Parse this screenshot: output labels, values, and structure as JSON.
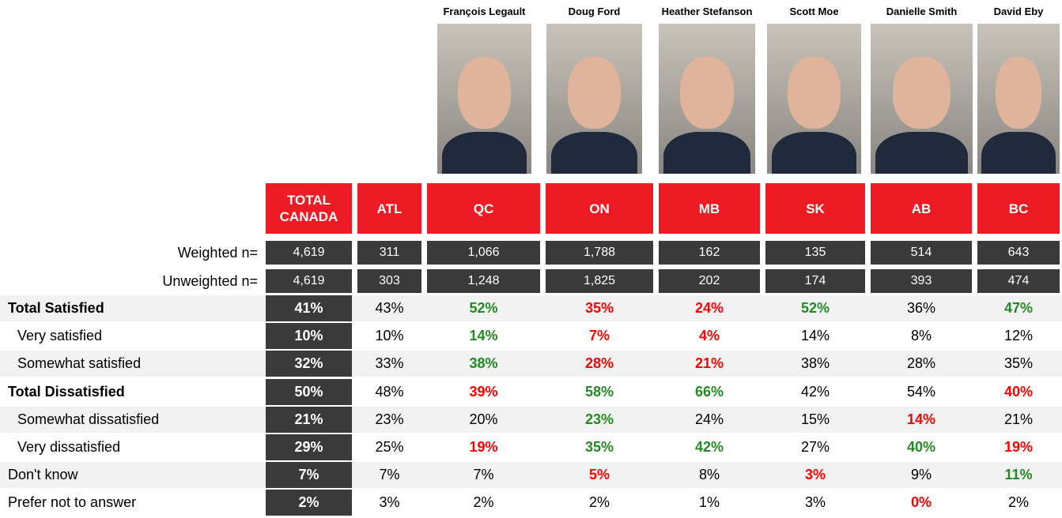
{
  "leaders": [
    "François Legault",
    "Doug Ford",
    "Heather Stefanson",
    "Scott Moe",
    "Danielle Smith",
    "David Eby"
  ],
  "table": {
    "headers": [
      "TOTAL CANADA",
      "ATL",
      "QC",
      "ON",
      "MB",
      "SK",
      "AB",
      "BC"
    ],
    "sample_rows": [
      {
        "label": "Weighted n=",
        "cells": [
          "4,619",
          "311",
          "1,066",
          "1,788",
          "162",
          "135",
          "514",
          "643"
        ]
      },
      {
        "label": "Unweighted n=",
        "cells": [
          "4,619",
          "303",
          "1,248",
          "1,825",
          "202",
          "174",
          "393",
          "474"
        ]
      }
    ],
    "rows": [
      {
        "label": "Total Satisfied",
        "cells": [
          "41%",
          "43%",
          "52%",
          "35%",
          "24%",
          "52%",
          "36%",
          "47%"
        ],
        "colors": [
          null,
          null,
          "#228b22",
          "#ff0000",
          "#ff0000",
          "#228b22",
          null,
          "#228b22"
        ]
      },
      {
        "label": "Very satisfied",
        "cells": [
          "10%",
          "10%",
          "14%",
          "7%",
          "4%",
          "14%",
          "8%",
          "12%"
        ],
        "colors": [
          null,
          null,
          "#228b22",
          "#ff0000",
          "#ff0000",
          null,
          null,
          null
        ]
      },
      {
        "label": "Somewhat satisfied",
        "cells": [
          "32%",
          "33%",
          "38%",
          "28%",
          "21%",
          "38%",
          "28%",
          "35%"
        ],
        "colors": [
          null,
          null,
          "#228b22",
          "#ff0000",
          "#ff0000",
          null,
          null,
          null
        ]
      },
      {
        "label": "Total Dissatisfied",
        "cells": [
          "50%",
          "48%",
          "39%",
          "58%",
          "66%",
          "42%",
          "54%",
          "40%"
        ],
        "colors": [
          null,
          null,
          "#ff0000",
          "#228b22",
          "#228b22",
          null,
          null,
          "#ff0000"
        ]
      },
      {
        "label": "Somewhat dissatisfied",
        "cells": [
          "21%",
          "23%",
          "20%",
          "23%",
          "24%",
          "15%",
          "14%",
          "21%"
        ],
        "colors": [
          null,
          null,
          null,
          "#228b22",
          null,
          null,
          "#ff0000",
          null
        ]
      },
      {
        "label": "Very dissatisfied",
        "cells": [
          "29%",
          "25%",
          "19%",
          "35%",
          "42%",
          "27%",
          "40%",
          "19%"
        ],
        "colors": [
          null,
          null,
          "#ff0000",
          "#228b22",
          "#228b22",
          null,
          "#228b22",
          "#ff0000"
        ]
      },
      {
        "label": "Don't know",
        "cells": [
          "7%",
          "7%",
          "7%",
          "5%",
          "8%",
          "3%",
          "9%",
          "11%"
        ],
        "colors": [
          null,
          null,
          null,
          "#ff0000",
          null,
          "#ff0000",
          null,
          "#228b22"
        ]
      },
      {
        "label": "Prefer not to answer",
        "cells": [
          "2%",
          "3%",
          "2%",
          "2%",
          "1%",
          "3%",
          "0%",
          "2%"
        ],
        "colors": [
          null,
          null,
          null,
          null,
          null,
          null,
          "#ff0000",
          null
        ]
      }
    ]
  }
}
